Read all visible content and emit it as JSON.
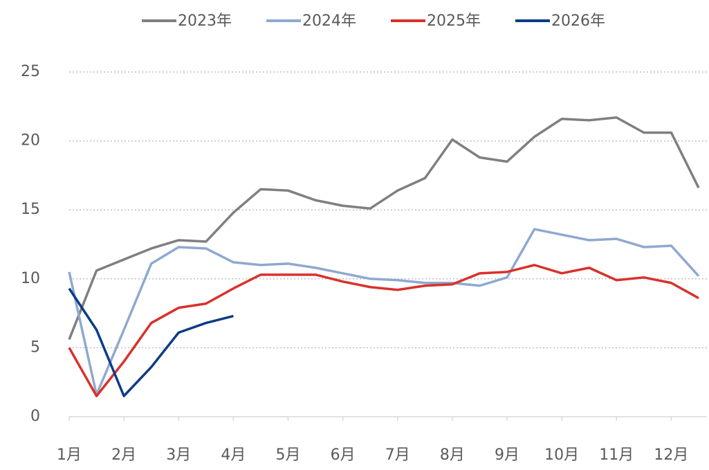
{
  "chart_data": {
    "type": "line",
    "categories": [
      "1月",
      null,
      "2月",
      null,
      "3月",
      null,
      "4月",
      null,
      "5月",
      null,
      "6月",
      null,
      "7月",
      null,
      "8月",
      null,
      "9月",
      null,
      "10月",
      null,
      "11月",
      null,
      "12月",
      null
    ],
    "series": [
      {
        "name": "2023年",
        "color": "#7f7f7f",
        "values": [
          5.6,
          10.6,
          11.4,
          12.2,
          12.8,
          12.7,
          14.8,
          16.5,
          16.4,
          15.7,
          15.3,
          15.1,
          16.4,
          17.3,
          20.1,
          18.8,
          18.5,
          20.3,
          21.6,
          21.5,
          21.7,
          20.6,
          20.6,
          16.6
        ]
      },
      {
        "name": "2024年",
        "color": "#8ea9d0",
        "values": [
          10.5,
          1.6,
          6.3,
          11.1,
          12.3,
          12.2,
          11.2,
          11.0,
          11.1,
          10.8,
          10.4,
          10.0,
          9.9,
          9.7,
          9.7,
          9.5,
          10.1,
          13.6,
          13.2,
          12.8,
          12.9,
          12.3,
          12.4,
          10.2
        ]
      },
      {
        "name": "2025年",
        "color": "#d9312b",
        "values": [
          5.0,
          1.5,
          4.0,
          6.8,
          7.9,
          8.2,
          9.3,
          10.3,
          10.3,
          10.3,
          9.8,
          9.4,
          9.2,
          9.5,
          9.6,
          10.4,
          10.5,
          11.0,
          10.4,
          10.8,
          9.9,
          10.1,
          9.7,
          8.6
        ]
      },
      {
        "name": "2026年",
        "color": "#0c3b86",
        "values": [
          9.3,
          6.3,
          1.5,
          3.6,
          6.1,
          6.8,
          7.3,
          null,
          null,
          null,
          null,
          null,
          null,
          null,
          null,
          null,
          null,
          null,
          null,
          null,
          null,
          null,
          null,
          null
        ]
      }
    ],
    "ylim": [
      0,
      25
    ],
    "yticks": [
      0,
      5,
      10,
      15,
      20,
      25
    ],
    "grid": true
  }
}
